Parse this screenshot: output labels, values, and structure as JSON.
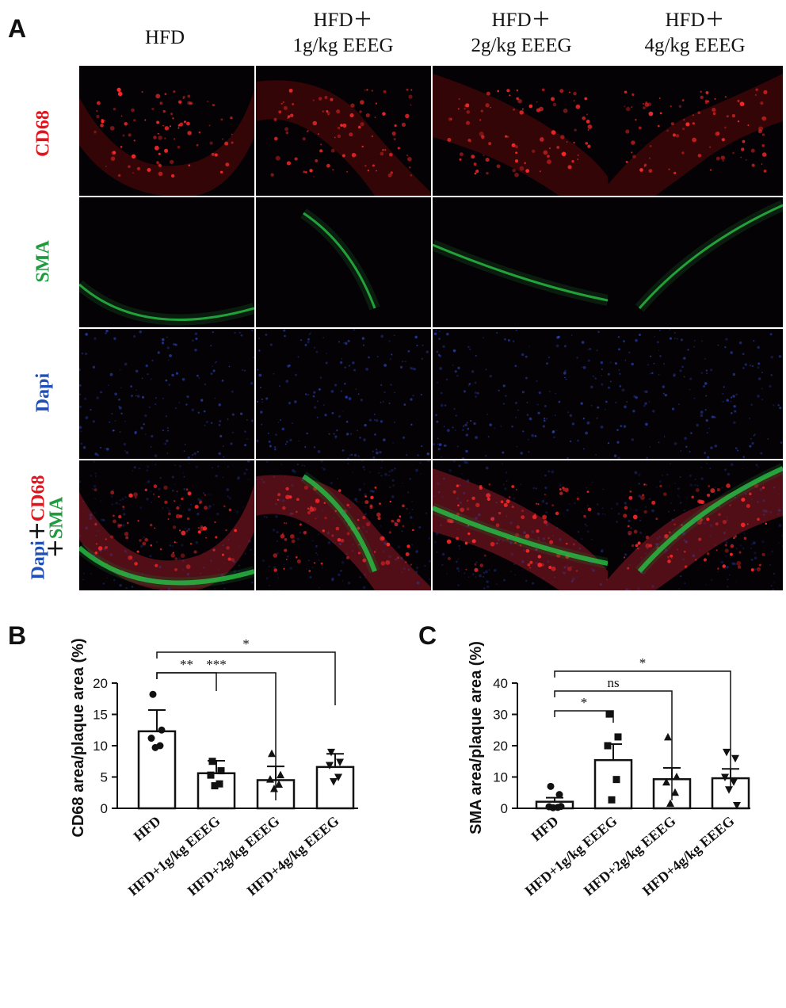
{
  "panel_a": {
    "letter": "A",
    "columns": [
      {
        "line1": "HFD",
        "line2": ""
      },
      {
        "line1": "HFD＋",
        "line2": "1g/kg EEEG"
      },
      {
        "line1": "HFD＋",
        "line2": "2g/kg EEEG"
      },
      {
        "line1": "HFD＋",
        "line2": "4g/kg EEEG"
      }
    ],
    "rows": {
      "cd68": "CD68",
      "sma": "SMA",
      "dapi": "Dapi",
      "merge_dapi": "Dapi",
      "merge_plus1": "＋",
      "merge_cd68": "CD68",
      "merge_plus2": "＋",
      "merge_sma": "SMA"
    },
    "colors": {
      "cd68": "#e0141c",
      "sma": "#1f9a3e",
      "dapi": "#1f4fb5"
    }
  },
  "chart_data": [
    {
      "panel": "B",
      "type": "bar",
      "ylabel": "CD68 area/plaque area (%)",
      "ylim": [
        0,
        20
      ],
      "yticks": [
        0,
        5,
        10,
        15,
        20
      ],
      "categories": [
        "HFD",
        "HFD+1g/kg EEEG",
        "HFD+2g/kg EEEG",
        "HFD+4g/kg EEEG"
      ],
      "values": [
        12.3,
        5.6,
        4.5,
        6.6
      ],
      "error": [
        3.4,
        2.0,
        2.2,
        2.1
      ],
      "points": [
        [
          18.2,
          12.5,
          11.2,
          10.0,
          9.7
        ],
        [
          7.5,
          6.0,
          5.3,
          3.9,
          3.6
        ],
        [
          8.7,
          5.3,
          4.6,
          3.8,
          3.1
        ],
        [
          9.0,
          7.4,
          6.9,
          5.0,
          4.3
        ]
      ],
      "markers": [
        "circle",
        "square",
        "triangle",
        "triangle-down"
      ],
      "comparisons": [
        {
          "from": 0,
          "to": 1,
          "label": "**"
        },
        {
          "from": 0,
          "to": 2,
          "label": "***"
        },
        {
          "from": 0,
          "to": 3,
          "label": "*"
        }
      ]
    },
    {
      "panel": "C",
      "type": "bar",
      "ylabel": "SMA area/plaque area (%)",
      "ylim": [
        0,
        40
      ],
      "yticks": [
        0,
        10,
        20,
        30,
        40
      ],
      "categories": [
        "HFD",
        "HFD+1g/kg EEEG",
        "HFD+2g/kg EEEG",
        "HFD+4g/kg EEEG"
      ],
      "values": [
        2.1,
        15.4,
        9.3,
        9.6
      ],
      "error": [
        1.3,
        5.1,
        3.6,
        3.0
      ],
      "points": [
        [
          7.0,
          4.4,
          0.5,
          0.3,
          0.2,
          0.6
        ],
        [
          30.1,
          22.8,
          20.0,
          9.2,
          2.7
        ],
        [
          22.7,
          10.0,
          8.3,
          5.0,
          1.5
        ],
        [
          18.0,
          16.0,
          10.0,
          8.5,
          6.0,
          1.0
        ]
      ],
      "markers": [
        "circle",
        "square",
        "triangle",
        "triangle-down"
      ],
      "comparisons": [
        {
          "from": 0,
          "to": 1,
          "label": "*"
        },
        {
          "from": 0,
          "to": 2,
          "label": "ns"
        },
        {
          "from": 0,
          "to": 3,
          "label": "*"
        }
      ]
    }
  ]
}
